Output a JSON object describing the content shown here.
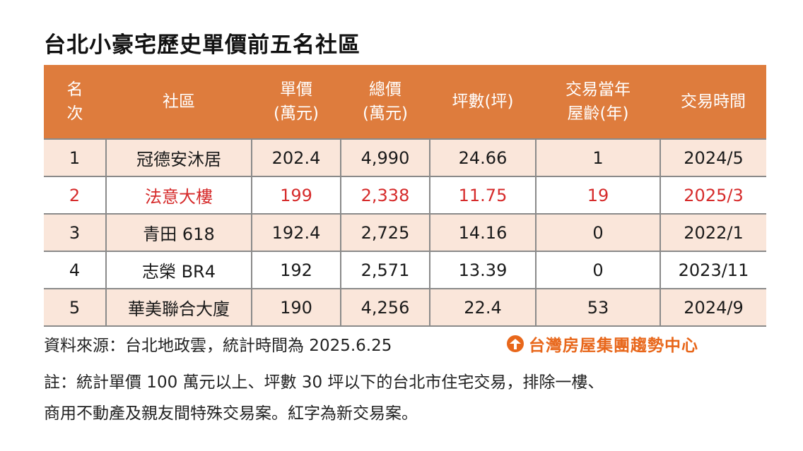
{
  "title": "台北小豪宅歷史單價前五名社區",
  "table": {
    "headers": {
      "rank_line1": "名",
      "rank_line2": "次",
      "community": "社區",
      "unit_price_line1": "單價",
      "unit_price_line2": "(萬元)",
      "total_price_line1": "總價",
      "total_price_line2": "(萬元)",
      "area": "坪數(坪)",
      "age_line1": "交易當年",
      "age_line2": "屋齡(年)",
      "date": "交易時間"
    },
    "rows": [
      {
        "rank": "1",
        "community": "冠德安沐居",
        "unit_price": "202.4",
        "total_price": "4,990",
        "area": "24.66",
        "age": "1",
        "date": "2024/5"
      },
      {
        "rank": "2",
        "community": "法意大樓",
        "unit_price": "199",
        "total_price": "2,338",
        "area": "11.75",
        "age": "19",
        "date": "2025/3"
      },
      {
        "rank": "3",
        "community": "青田 618",
        "unit_price": "192.4",
        "total_price": "2,725",
        "area": "14.16",
        "age": "0",
        "date": "2022/1"
      },
      {
        "rank": "4",
        "community": "志榮 BR4",
        "unit_price": "192",
        "total_price": "2,571",
        "area": "13.39",
        "age": "0",
        "date": "2023/11"
      },
      {
        "rank": "5",
        "community": "華美聯合大廈",
        "unit_price": "190",
        "total_price": "4,256",
        "area": "22.4",
        "age": "53",
        "date": "2024/9"
      }
    ]
  },
  "source_text": "資料來源：台北地政雲，統計時間為 2025.6.25",
  "logo_text": "台灣房屋集團趨勢中心",
  "note_line1": "註：統計單價 100 萬元以上、坪數 30 坪以下的台北市住宅交易，排除一樓、",
  "note_line2": "商用不動產及親友間特殊交易案。紅字為新交易案。",
  "colors": {
    "header_bg": "#de7c3d",
    "odd_row_bg": "#fae6da",
    "highlight_text": "#d62b2b",
    "logo": "#e8671b"
  }
}
